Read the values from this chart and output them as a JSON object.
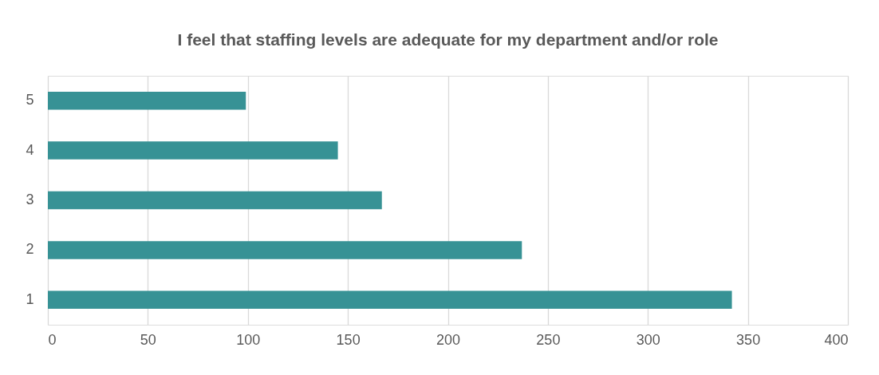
{
  "chart_data": {
    "type": "bar",
    "orientation": "horizontal",
    "title": "I feel that staffing levels are adequate for my department and/or role",
    "categories": [
      "5",
      "4",
      "3",
      "2",
      "1"
    ],
    "values": [
      99,
      145,
      167,
      237,
      342
    ],
    "color": "#379295",
    "xlim": [
      0,
      400
    ],
    "xticks": [
      0,
      50,
      100,
      150,
      200,
      250,
      300,
      350,
      400
    ],
    "grid": "x"
  }
}
